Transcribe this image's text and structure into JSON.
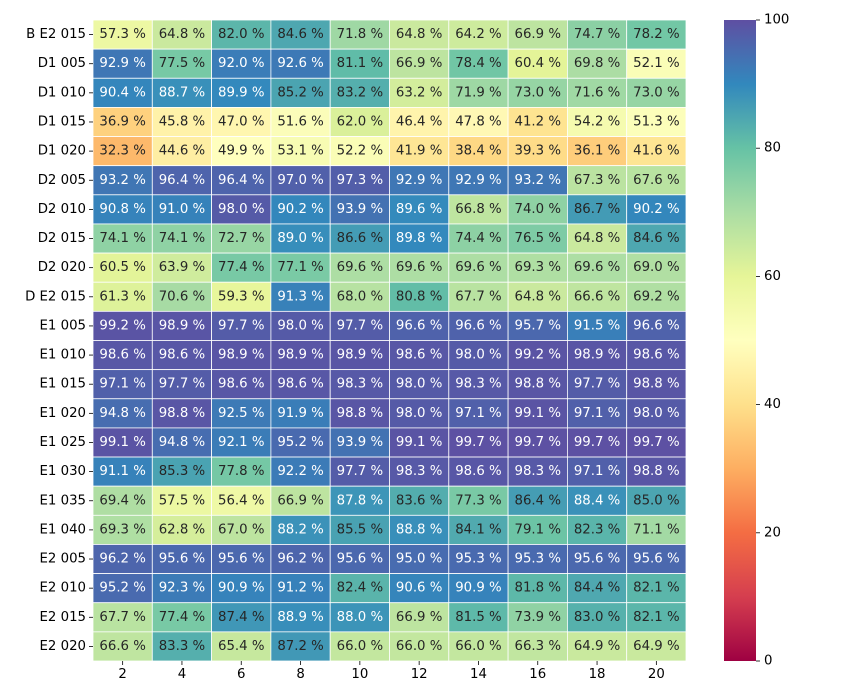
{
  "chart_data": {
    "type": "heatmap",
    "title": "",
    "xlabel": "",
    "ylabel": "",
    "value_suffix": " %",
    "columns": [
      "2",
      "4",
      "6",
      "8",
      "10",
      "12",
      "14",
      "16",
      "18",
      "20"
    ],
    "rows": [
      "B E2 015",
      "D1 005",
      "D1 010",
      "D1 015",
      "D1 020",
      "D2 005",
      "D2 010",
      "D2 015",
      "D2 020",
      "D E2 015",
      "E1 005",
      "E1 010",
      "E1 015",
      "E1 020",
      "E1 025",
      "E1 030",
      "E1 035",
      "E1 040",
      "E2 005",
      "E2 010",
      "E2 015",
      "E2 020"
    ],
    "values": [
      [
        57.3,
        64.8,
        82.0,
        84.6,
        71.8,
        64.8,
        64.2,
        66.9,
        74.7,
        78.2
      ],
      [
        92.9,
        77.5,
        92.0,
        92.6,
        81.1,
        66.9,
        78.4,
        60.4,
        69.8,
        52.1
      ],
      [
        90.4,
        88.7,
        89.9,
        85.2,
        83.2,
        63.2,
        71.9,
        73.0,
        71.6,
        73.0
      ],
      [
        36.9,
        45.8,
        47.0,
        51.6,
        62.0,
        46.4,
        47.8,
        41.2,
        54.2,
        51.3
      ],
      [
        32.3,
        44.6,
        49.9,
        53.1,
        52.2,
        41.9,
        38.4,
        39.3,
        36.1,
        41.6
      ],
      [
        93.2,
        96.4,
        96.4,
        97.0,
        97.3,
        92.9,
        92.9,
        93.2,
        67.3,
        67.6
      ],
      [
        90.8,
        91.0,
        98.0,
        90.2,
        93.9,
        89.6,
        66.8,
        74.0,
        86.7,
        90.2
      ],
      [
        74.1,
        74.1,
        72.7,
        89.0,
        86.6,
        89.8,
        74.4,
        76.5,
        64.8,
        84.6
      ],
      [
        60.5,
        63.9,
        77.4,
        77.1,
        69.6,
        69.6,
        69.6,
        69.3,
        69.6,
        69.0
      ],
      [
        61.3,
        70.6,
        59.3,
        91.3,
        68.0,
        80.8,
        67.7,
        64.8,
        66.6,
        69.2
      ],
      [
        99.2,
        98.9,
        97.7,
        98.0,
        97.7,
        96.6,
        96.6,
        95.7,
        91.5,
        96.6
      ],
      [
        98.6,
        98.6,
        98.9,
        98.9,
        98.9,
        98.6,
        98.0,
        99.2,
        98.9,
        98.6
      ],
      [
        97.1,
        97.7,
        98.6,
        98.6,
        98.3,
        98.0,
        98.3,
        98.8,
        97.7,
        98.8
      ],
      [
        94.8,
        98.8,
        92.5,
        91.9,
        98.8,
        98.0,
        97.1,
        99.1,
        97.1,
        98.0
      ],
      [
        99.1,
        94.8,
        92.1,
        95.2,
        93.9,
        99.1,
        99.7,
        99.7,
        99.7,
        99.7
      ],
      [
        91.1,
        85.3,
        77.8,
        92.2,
        97.7,
        98.3,
        98.6,
        98.3,
        97.1,
        98.8
      ],
      [
        69.4,
        57.5,
        56.4,
        66.9,
        87.8,
        83.6,
        77.3,
        86.4,
        88.4,
        85.0
      ],
      [
        69.3,
        62.8,
        67.0,
        88.2,
        85.5,
        88.8,
        84.1,
        79.1,
        82.3,
        71.1
      ],
      [
        96.2,
        95.6,
        95.6,
        96.2,
        95.6,
        95.0,
        95.3,
        95.3,
        95.6,
        95.6
      ],
      [
        95.2,
        92.3,
        90.9,
        91.2,
        82.4,
        90.6,
        90.9,
        81.8,
        84.4,
        82.1
      ],
      [
        67.7,
        77.4,
        87.4,
        88.9,
        88.0,
        66.9,
        81.5,
        73.9,
        83.0,
        82.1
      ],
      [
        66.6,
        83.3,
        65.4,
        87.2,
        66.0,
        66.0,
        66.0,
        66.3,
        64.9,
        64.9
      ]
    ],
    "vmin": 0,
    "vmax": 100,
    "colormap": "Spectral",
    "cell_border_color": "#ffffff",
    "colorbar": {
      "ticks": [
        0,
        20,
        40,
        60,
        80,
        100
      ],
      "placement": "right"
    },
    "grid": false
  }
}
